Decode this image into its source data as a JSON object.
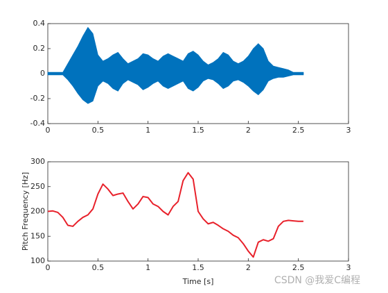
{
  "chart_data": [
    {
      "type": "area",
      "x": [
        0,
        0.05,
        0.1,
        0.15,
        0.2,
        0.25,
        0.3,
        0.35,
        0.4,
        0.45,
        0.5,
        0.55,
        0.6,
        0.65,
        0.7,
        0.75,
        0.8,
        0.85,
        0.9,
        0.95,
        1.0,
        1.05,
        1.1,
        1.15,
        1.2,
        1.25,
        1.3,
        1.35,
        1.4,
        1.45,
        1.5,
        1.55,
        1.6,
        1.65,
        1.7,
        1.75,
        1.8,
        1.85,
        1.9,
        1.95,
        2.0,
        2.05,
        2.1,
        2.15,
        2.2,
        2.25,
        2.3,
        2.35,
        2.4,
        2.45,
        2.5,
        2.55
      ],
      "series": [
        {
          "color": "#0072bd",
          "values": [
            0.01,
            0.01,
            0.01,
            0.01,
            0.08,
            0.15,
            0.22,
            0.3,
            0.37,
            0.32,
            0.15,
            0.1,
            0.12,
            0.15,
            0.17,
            0.12,
            0.08,
            0.1,
            0.12,
            0.16,
            0.15,
            0.12,
            0.1,
            0.14,
            0.16,
            0.14,
            0.12,
            0.1,
            0.16,
            0.18,
            0.15,
            0.1,
            0.07,
            0.09,
            0.12,
            0.17,
            0.15,
            0.1,
            0.08,
            0.1,
            0.14,
            0.2,
            0.24,
            0.2,
            0.1,
            0.06,
            0.05,
            0.04,
            0.03,
            0.01,
            0.01,
            0.01
          ]
        },
        {
          "color": "#0072bd",
          "values": [
            -0.01,
            -0.01,
            -0.01,
            -0.01,
            -0.05,
            -0.1,
            -0.16,
            -0.21,
            -0.24,
            -0.22,
            -0.1,
            -0.06,
            -0.08,
            -0.12,
            -0.14,
            -0.08,
            -0.05,
            -0.07,
            -0.09,
            -0.13,
            -0.11,
            -0.08,
            -0.06,
            -0.1,
            -0.12,
            -0.1,
            -0.08,
            -0.06,
            -0.12,
            -0.14,
            -0.11,
            -0.06,
            -0.04,
            -0.05,
            -0.08,
            -0.12,
            -0.1,
            -0.06,
            -0.05,
            -0.07,
            -0.1,
            -0.14,
            -0.17,
            -0.13,
            -0.06,
            -0.04,
            -0.03,
            -0.03,
            -0.02,
            -0.01,
            -0.01,
            -0.01
          ]
        }
      ],
      "xlim": [
        0,
        3
      ],
      "xticks": [
        0,
        0.5,
        1,
        1.5,
        2,
        2.5,
        3
      ],
      "ylim": [
        -0.4,
        0.4
      ],
      "yticks": [
        -0.4,
        -0.2,
        0,
        0.2,
        0.4
      ]
    },
    {
      "type": "line",
      "x": [
        0,
        0.05,
        0.1,
        0.15,
        0.2,
        0.25,
        0.3,
        0.35,
        0.4,
        0.45,
        0.5,
        0.55,
        0.6,
        0.65,
        0.7,
        0.75,
        0.8,
        0.85,
        0.9,
        0.95,
        1.0,
        1.05,
        1.1,
        1.15,
        1.2,
        1.25,
        1.3,
        1.35,
        1.4,
        1.45,
        1.5,
        1.55,
        1.6,
        1.65,
        1.7,
        1.75,
        1.8,
        1.85,
        1.9,
        1.95,
        2.0,
        2.05,
        2.1,
        2.15,
        2.2,
        2.25,
        2.3,
        2.35,
        2.4,
        2.45,
        2.5,
        2.55
      ],
      "series": [
        {
          "color": "#e8202a",
          "values": [
            200,
            201,
            198,
            188,
            172,
            170,
            180,
            188,
            193,
            205,
            235,
            255,
            245,
            232,
            235,
            237,
            220,
            205,
            215,
            230,
            228,
            215,
            210,
            200,
            193,
            210,
            220,
            262,
            278,
            265,
            200,
            185,
            175,
            178,
            172,
            165,
            160,
            152,
            147,
            135,
            120,
            108,
            138,
            143,
            140,
            145,
            170,
            180,
            182,
            181,
            180,
            180
          ]
        }
      ],
      "xlabel": "Time [s]",
      "ylabel": "Pitch Frequency [Hz]",
      "xlim": [
        0,
        3
      ],
      "xticks": [
        0,
        0.5,
        1,
        1.5,
        2,
        2.5,
        3
      ],
      "ylim": [
        100,
        300
      ],
      "yticks": [
        100,
        150,
        200,
        250,
        300
      ]
    }
  ],
  "watermark": "CSDN @我爱C编程"
}
